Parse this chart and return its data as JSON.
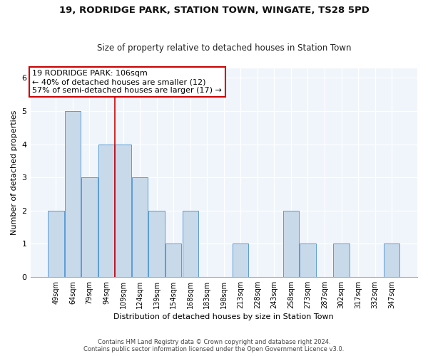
{
  "title": "19, RODRIDGE PARK, STATION TOWN, WINGATE, TS28 5PD",
  "subtitle": "Size of property relative to detached houses in Station Town",
  "xlabel": "Distribution of detached houses by size in Station Town",
  "ylabel": "Number of detached properties",
  "categories": [
    "49sqm",
    "64sqm",
    "79sqm",
    "94sqm",
    "109sqm",
    "124sqm",
    "139sqm",
    "154sqm",
    "168sqm",
    "183sqm",
    "198sqm",
    "213sqm",
    "228sqm",
    "243sqm",
    "258sqm",
    "273sqm",
    "287sqm",
    "302sqm",
    "317sqm",
    "332sqm",
    "347sqm"
  ],
  "values": [
    2,
    5,
    3,
    4,
    4,
    3,
    2,
    1,
    2,
    0,
    0,
    1,
    0,
    0,
    2,
    1,
    0,
    1,
    0,
    0,
    1
  ],
  "bar_color": "#c8d9ea",
  "bar_edge_color": "#5b9bd5",
  "vline_x_index": 3.5,
  "vline_color": "#cc0000",
  "annotation_text": "19 RODRIDGE PARK: 106sqm\n← 40% of detached houses are smaller (12)\n57% of semi-detached houses are larger (17) →",
  "annotation_box_facecolor": "#ffffff",
  "annotation_box_edge_color": "#cc0000",
  "ylim_max": 6.3,
  "yticks": [
    0,
    1,
    2,
    3,
    4,
    5,
    6
  ],
  "footer1": "Contains HM Land Registry data © Crown copyright and database right 2024.",
  "footer2": "Contains public sector information licensed under the Open Government Licence v3.0.",
  "fig_facecolor": "#ffffff",
  "ax_facecolor": "#f0f5fb"
}
